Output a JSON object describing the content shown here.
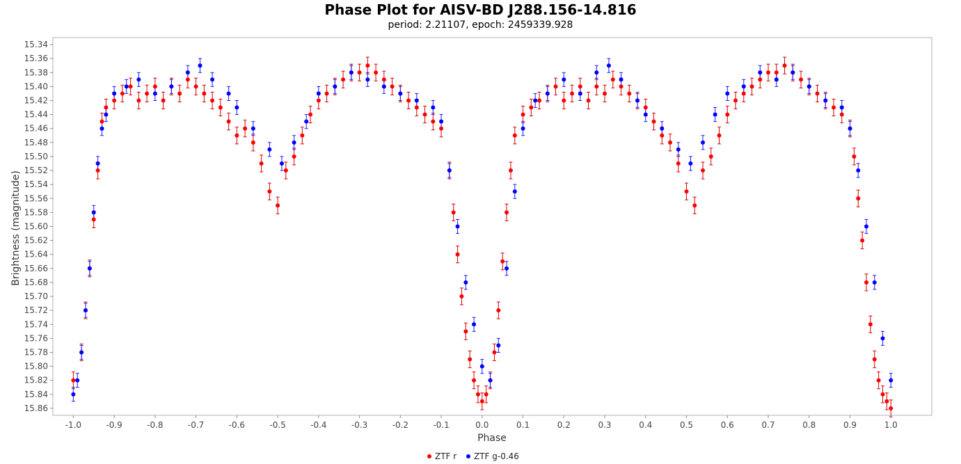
{
  "colors": {
    "series_r": "#ff0000",
    "series_g": "#0000ff",
    "error_bar_r": "#d40000",
    "error_bar_g": "#1a1aff",
    "frame": "#b0b0b0",
    "background": "#ffffff"
  },
  "chart_data": {
    "type": "scatter",
    "title": "Phase Plot for AISV-BD J288.156-14.816",
    "subtitle": "period: 2.21107, epoch: 2459339.928",
    "xlabel": "Phase",
    "ylabel": "Brightness (magnitude)",
    "xlim": [
      -1.05,
      1.1
    ],
    "ylim": [
      15.33,
      15.87
    ],
    "y_inverted": true,
    "x_ticks": [
      "-1.0",
      "-0.9",
      "-0.8",
      "-0.7",
      "-0.6",
      "-0.5",
      "-0.4",
      "-0.3",
      "-0.2",
      "-0.1",
      "0.0",
      "0.1",
      "0.2",
      "0.3",
      "0.4",
      "0.5",
      "0.6",
      "0.7",
      "0.8",
      "0.9",
      "1.0"
    ],
    "y_ticks": [
      "15.34",
      "15.36",
      "15.38",
      "15.40",
      "15.42",
      "15.44",
      "15.46",
      "15.48",
      "15.50",
      "15.52",
      "15.54",
      "15.56",
      "15.58",
      "15.60",
      "15.62",
      "15.64",
      "15.66",
      "15.68",
      "15.70",
      "15.72",
      "15.74",
      "15.76",
      "15.78",
      "15.80",
      "15.82",
      "15.84",
      "15.86"
    ],
    "grid": false,
    "legend_position": "bottom-center",
    "series": [
      {
        "name": "ZTF r",
        "color": "#ff0000",
        "error": 0.012,
        "x": [
          -1.0,
          -0.98,
          -0.97,
          -0.96,
          -0.95,
          -0.94,
          -0.93,
          -0.92,
          -0.9,
          -0.88,
          -0.86,
          -0.84,
          -0.82,
          -0.8,
          -0.78,
          -0.76,
          -0.74,
          -0.72,
          -0.7,
          -0.68,
          -0.66,
          -0.64,
          -0.62,
          -0.6,
          -0.58,
          -0.56,
          -0.54,
          -0.52,
          -0.5,
          -0.48,
          -0.46,
          -0.44,
          -0.42,
          -0.4,
          -0.38,
          -0.36,
          -0.34,
          -0.32,
          -0.3,
          -0.28,
          -0.26,
          -0.24,
          -0.22,
          -0.2,
          -0.18,
          -0.16,
          -0.14,
          -0.12,
          -0.1,
          -0.08,
          -0.07,
          -0.06,
          -0.05,
          -0.04,
          -0.03,
          -0.02,
          -0.01,
          0.0,
          0.01,
          0.02,
          0.03,
          0.04,
          0.05,
          0.06,
          0.07,
          0.08,
          0.1,
          0.12,
          0.14,
          0.16,
          0.18,
          0.2,
          0.22,
          0.24,
          0.26,
          0.28,
          0.3,
          0.32,
          0.34,
          0.36,
          0.38,
          0.4,
          0.42,
          0.44,
          0.46,
          0.48,
          0.5,
          0.52,
          0.54,
          0.56,
          0.58,
          0.6,
          0.62,
          0.64,
          0.66,
          0.68,
          0.7,
          0.72,
          0.74,
          0.76,
          0.78,
          0.8,
          0.82,
          0.84,
          0.86,
          0.88,
          0.9,
          0.91,
          0.92,
          0.93,
          0.94,
          0.95,
          0.96,
          0.97,
          0.98,
          0.99,
          1.0
        ],
        "y": [
          15.82,
          15.78,
          15.72,
          15.66,
          15.59,
          15.52,
          15.45,
          15.43,
          15.42,
          15.41,
          15.4,
          15.42,
          15.41,
          15.4,
          15.42,
          15.4,
          15.41,
          15.39,
          15.4,
          15.41,
          15.42,
          15.43,
          15.45,
          15.47,
          15.46,
          15.48,
          15.51,
          15.55,
          15.57,
          15.52,
          15.5,
          15.47,
          15.44,
          15.42,
          15.41,
          15.4,
          15.39,
          15.38,
          15.38,
          15.37,
          15.38,
          15.39,
          15.4,
          15.41,
          15.42,
          15.43,
          15.44,
          15.45,
          15.46,
          15.52,
          15.58,
          15.64,
          15.7,
          15.75,
          15.79,
          15.82,
          15.84,
          15.85,
          15.84,
          15.82,
          15.78,
          15.72,
          15.65,
          15.58,
          15.52,
          15.47,
          15.44,
          15.43,
          15.42,
          15.41,
          15.4,
          15.42,
          15.41,
          15.4,
          15.42,
          15.4,
          15.41,
          15.39,
          15.4,
          15.41,
          15.42,
          15.43,
          15.45,
          15.47,
          15.48,
          15.51,
          15.55,
          15.57,
          15.52,
          15.5,
          15.47,
          15.44,
          15.42,
          15.41,
          15.4,
          15.39,
          15.38,
          15.38,
          15.37,
          15.38,
          15.39,
          15.4,
          15.41,
          15.42,
          15.43,
          15.44,
          15.46,
          15.5,
          15.56,
          15.62,
          15.68,
          15.74,
          15.79,
          15.82,
          15.84,
          15.85,
          15.86
        ]
      },
      {
        "name": "ZTF g-0.46",
        "color": "#0000ff",
        "error": 0.01,
        "x": [
          -1.0,
          -0.99,
          -0.98,
          -0.97,
          -0.96,
          -0.95,
          -0.94,
          -0.93,
          -0.92,
          -0.9,
          -0.87,
          -0.84,
          -0.8,
          -0.76,
          -0.72,
          -0.69,
          -0.66,
          -0.62,
          -0.6,
          -0.56,
          -0.52,
          -0.49,
          -0.46,
          -0.43,
          -0.4,
          -0.36,
          -0.32,
          -0.28,
          -0.24,
          -0.2,
          -0.16,
          -0.12,
          -0.1,
          -0.08,
          -0.06,
          -0.04,
          -0.02,
          0.0,
          0.02,
          0.04,
          0.06,
          0.08,
          0.1,
          0.13,
          0.16,
          0.2,
          0.24,
          0.28,
          0.31,
          0.34,
          0.38,
          0.4,
          0.44,
          0.48,
          0.51,
          0.54,
          0.57,
          0.6,
          0.64,
          0.68,
          0.72,
          0.76,
          0.8,
          0.84,
          0.88,
          0.9,
          0.92,
          0.94,
          0.96,
          0.98,
          1.0
        ],
        "y": [
          15.84,
          15.82,
          15.78,
          15.72,
          15.66,
          15.58,
          15.51,
          15.46,
          15.44,
          15.41,
          15.4,
          15.39,
          15.41,
          15.4,
          15.38,
          15.37,
          15.39,
          15.41,
          15.43,
          15.46,
          15.49,
          15.51,
          15.48,
          15.45,
          15.41,
          15.4,
          15.38,
          15.39,
          15.4,
          15.41,
          15.42,
          15.43,
          15.45,
          15.52,
          15.6,
          15.68,
          15.74,
          15.8,
          15.82,
          15.77,
          15.66,
          15.55,
          15.46,
          15.42,
          15.41,
          15.39,
          15.41,
          15.38,
          15.37,
          15.39,
          15.42,
          15.44,
          15.46,
          15.49,
          15.51,
          15.48,
          15.44,
          15.41,
          15.4,
          15.38,
          15.39,
          15.38,
          15.4,
          15.42,
          15.43,
          15.46,
          15.52,
          15.6,
          15.68,
          15.76,
          15.82
        ]
      }
    ]
  }
}
